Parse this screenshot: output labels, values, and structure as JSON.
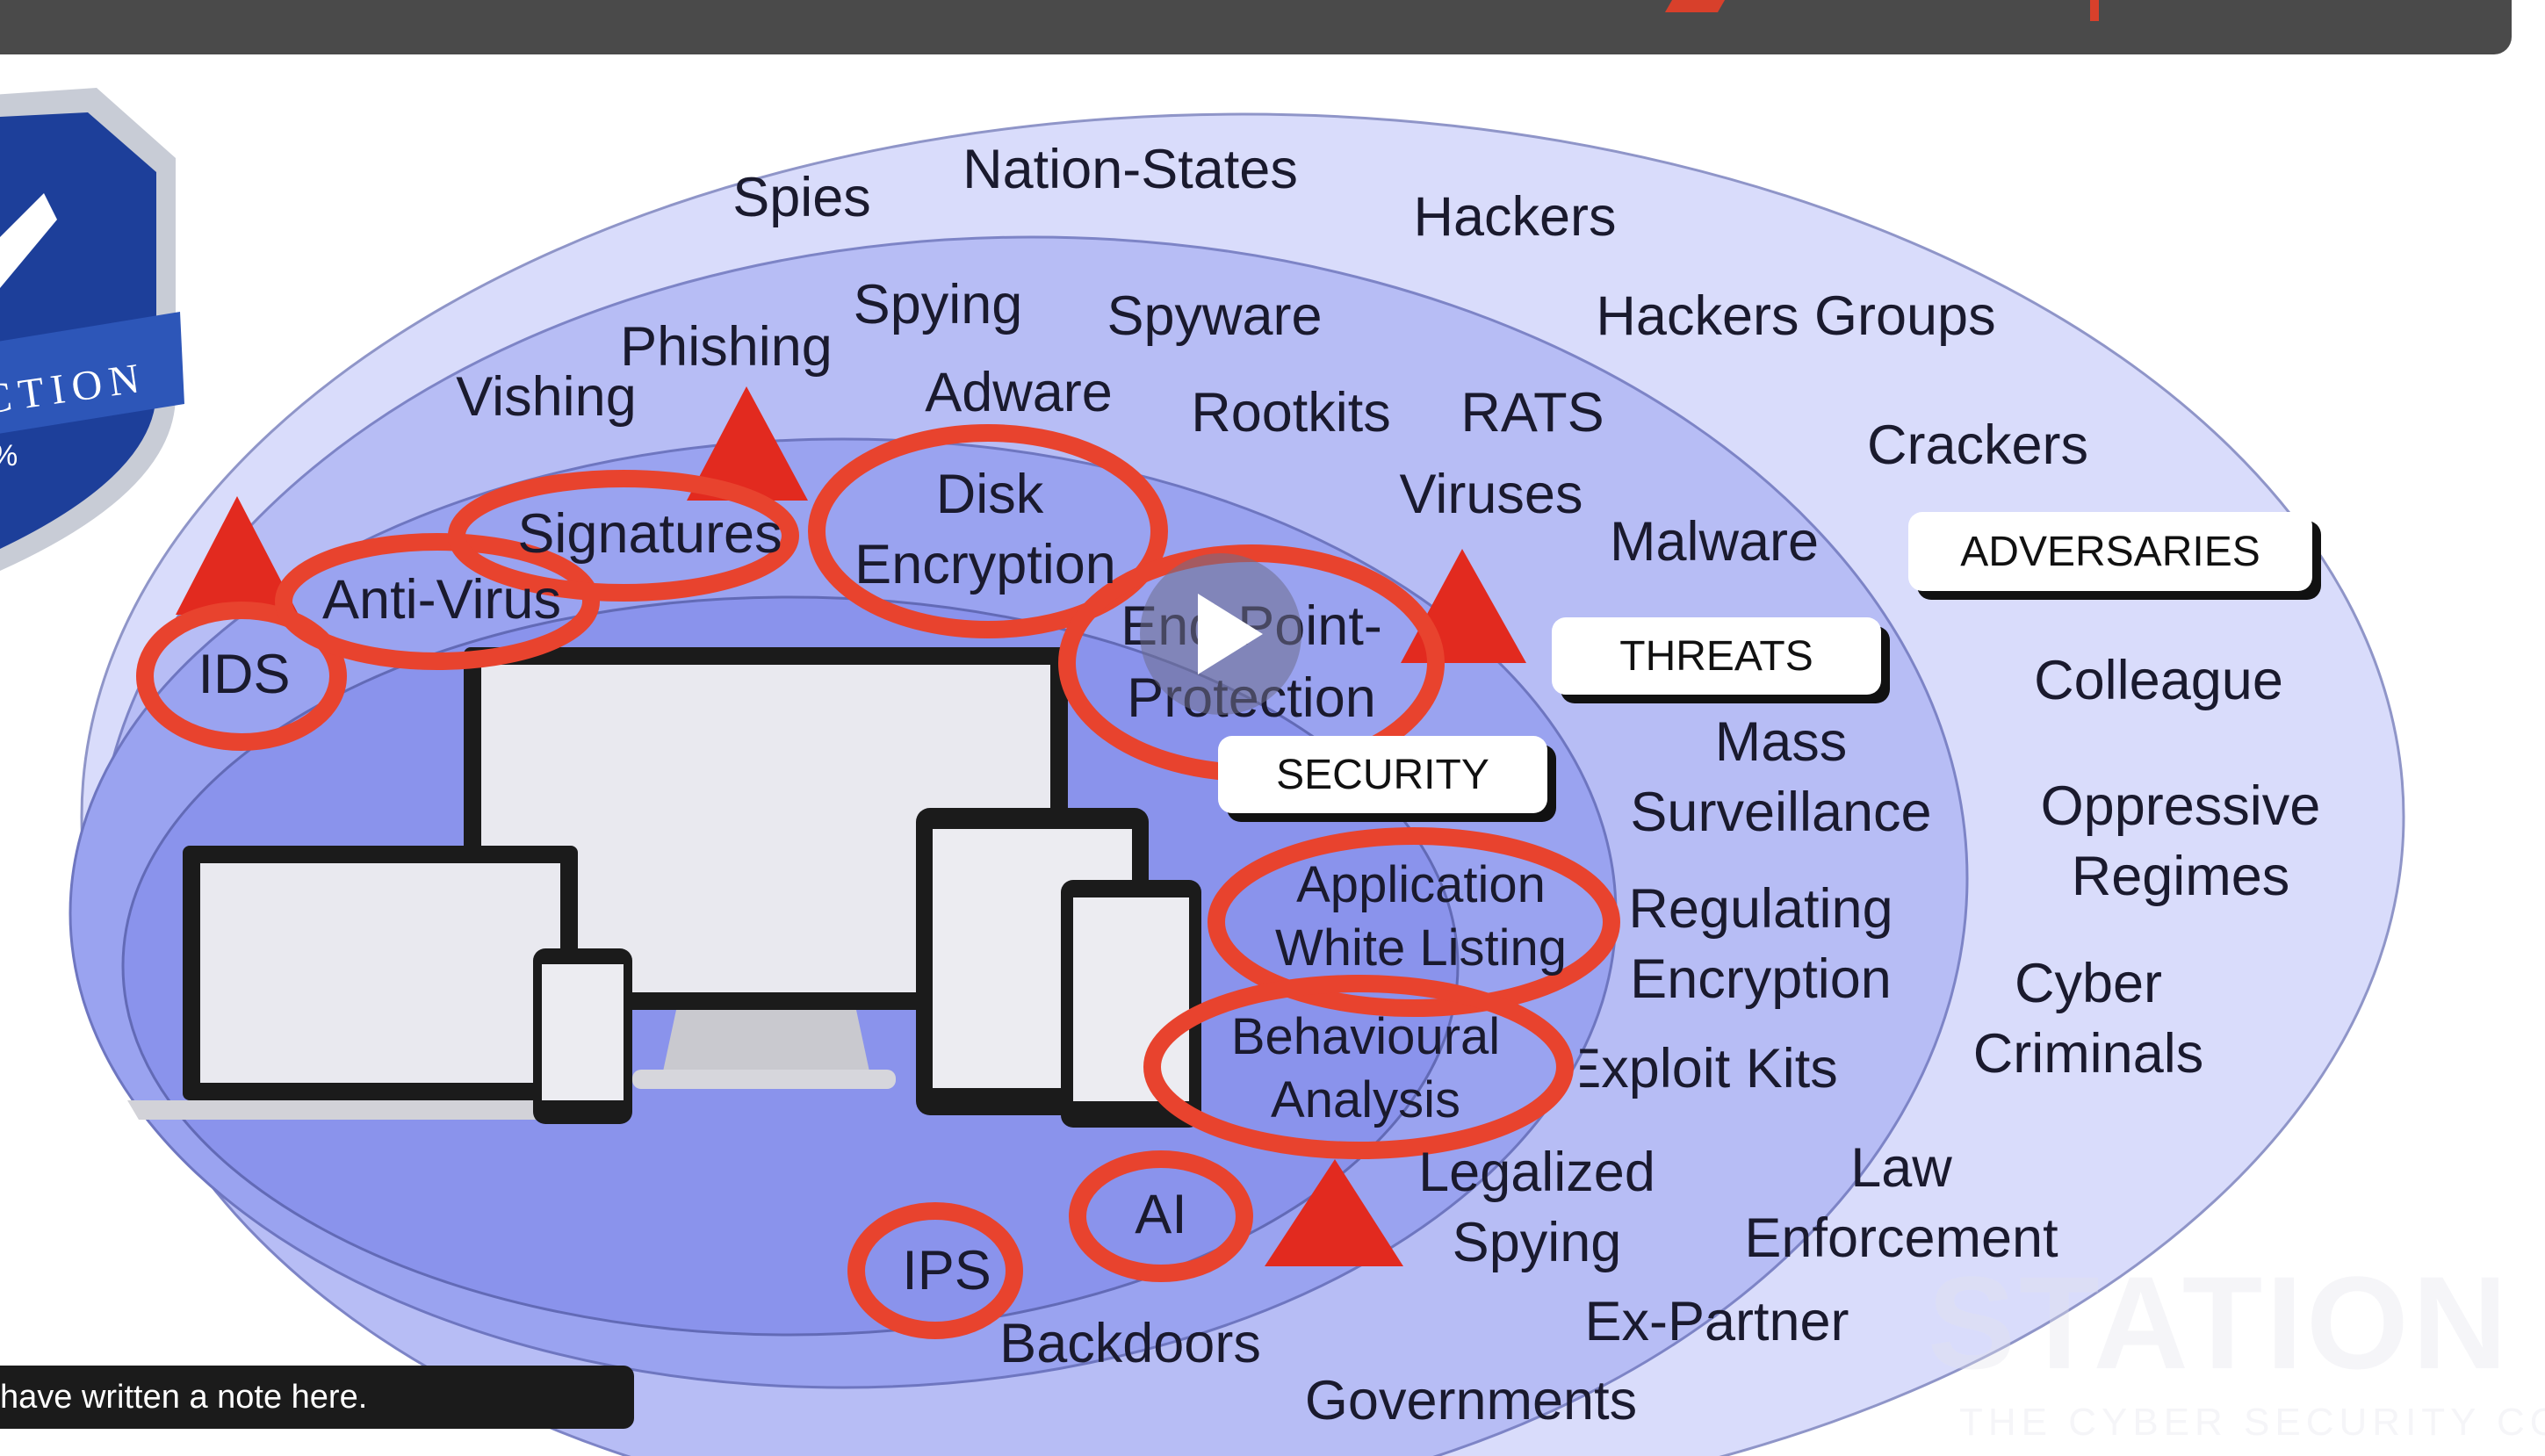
{
  "labels": {
    "spies": "Spies",
    "nation_states": "Nation-States",
    "hackers": "Hackers",
    "hackers_groups": "Hackers Groups",
    "crackers": "Crackers",
    "phishing": "Phishing",
    "vishing": "Vishing",
    "spying": "Spying",
    "spyware": "Spyware",
    "adware": "Adware",
    "rootkits": "Rootkits",
    "rats": "RATS",
    "viruses": "Viruses",
    "malware": "Malware",
    "colleague": "Colleague",
    "mass": "Mass",
    "surveillance": "Surveillance",
    "oppressive": "Oppressive",
    "regimes": "Regimes",
    "regulating": "Regulating",
    "encryption_reg": "Encryption",
    "cyber": "Cyber",
    "criminals": "Criminals",
    "exploit_kits": "Exploit Kits",
    "legalized": "Legalized",
    "spying2": "Spying",
    "law": "Law",
    "enforcement": "Enforcement",
    "ex_partner": "Ex-Partner",
    "backdoors": "Backdoors",
    "governments": "Governments",
    "ids": "IDS",
    "anti_virus": "Anti-Virus",
    "signatures": "Signatures",
    "disk": "Disk",
    "encryption_sec": "Encryption",
    "end_point": "End-Point-",
    "protection": "Protection",
    "application": "Application",
    "white_listing": "White Listing",
    "behavioural": "Behavioural",
    "analysis": "Analysis",
    "ai": "AI",
    "ips": "IPS"
  },
  "tags": {
    "adversaries": "ADVERSARIES",
    "threats": "THREATS",
    "security": "SECURITY"
  },
  "shield": {
    "text": "CTION",
    "small": "%"
  },
  "note": "have written a note here.",
  "watermark": {
    "brand": "STATION",
    "tagline": "THE CYBER SECURITY COMP"
  },
  "colors": {
    "outer_ellipse": "#d9dcfb",
    "middle_ellipse": "#b7bdf5",
    "inner_ellipse": "#9aa3f0",
    "core_ellipse": "#8a93ec",
    "highlight_ring": "#e8432e",
    "warning_triangle": "#e22a1f"
  },
  "icons": [
    "play-icon",
    "shield-badge-icon",
    "warning-triangle-icon",
    "laptop-icon",
    "monitor-icon",
    "tablet-icon",
    "phone-icon"
  ]
}
